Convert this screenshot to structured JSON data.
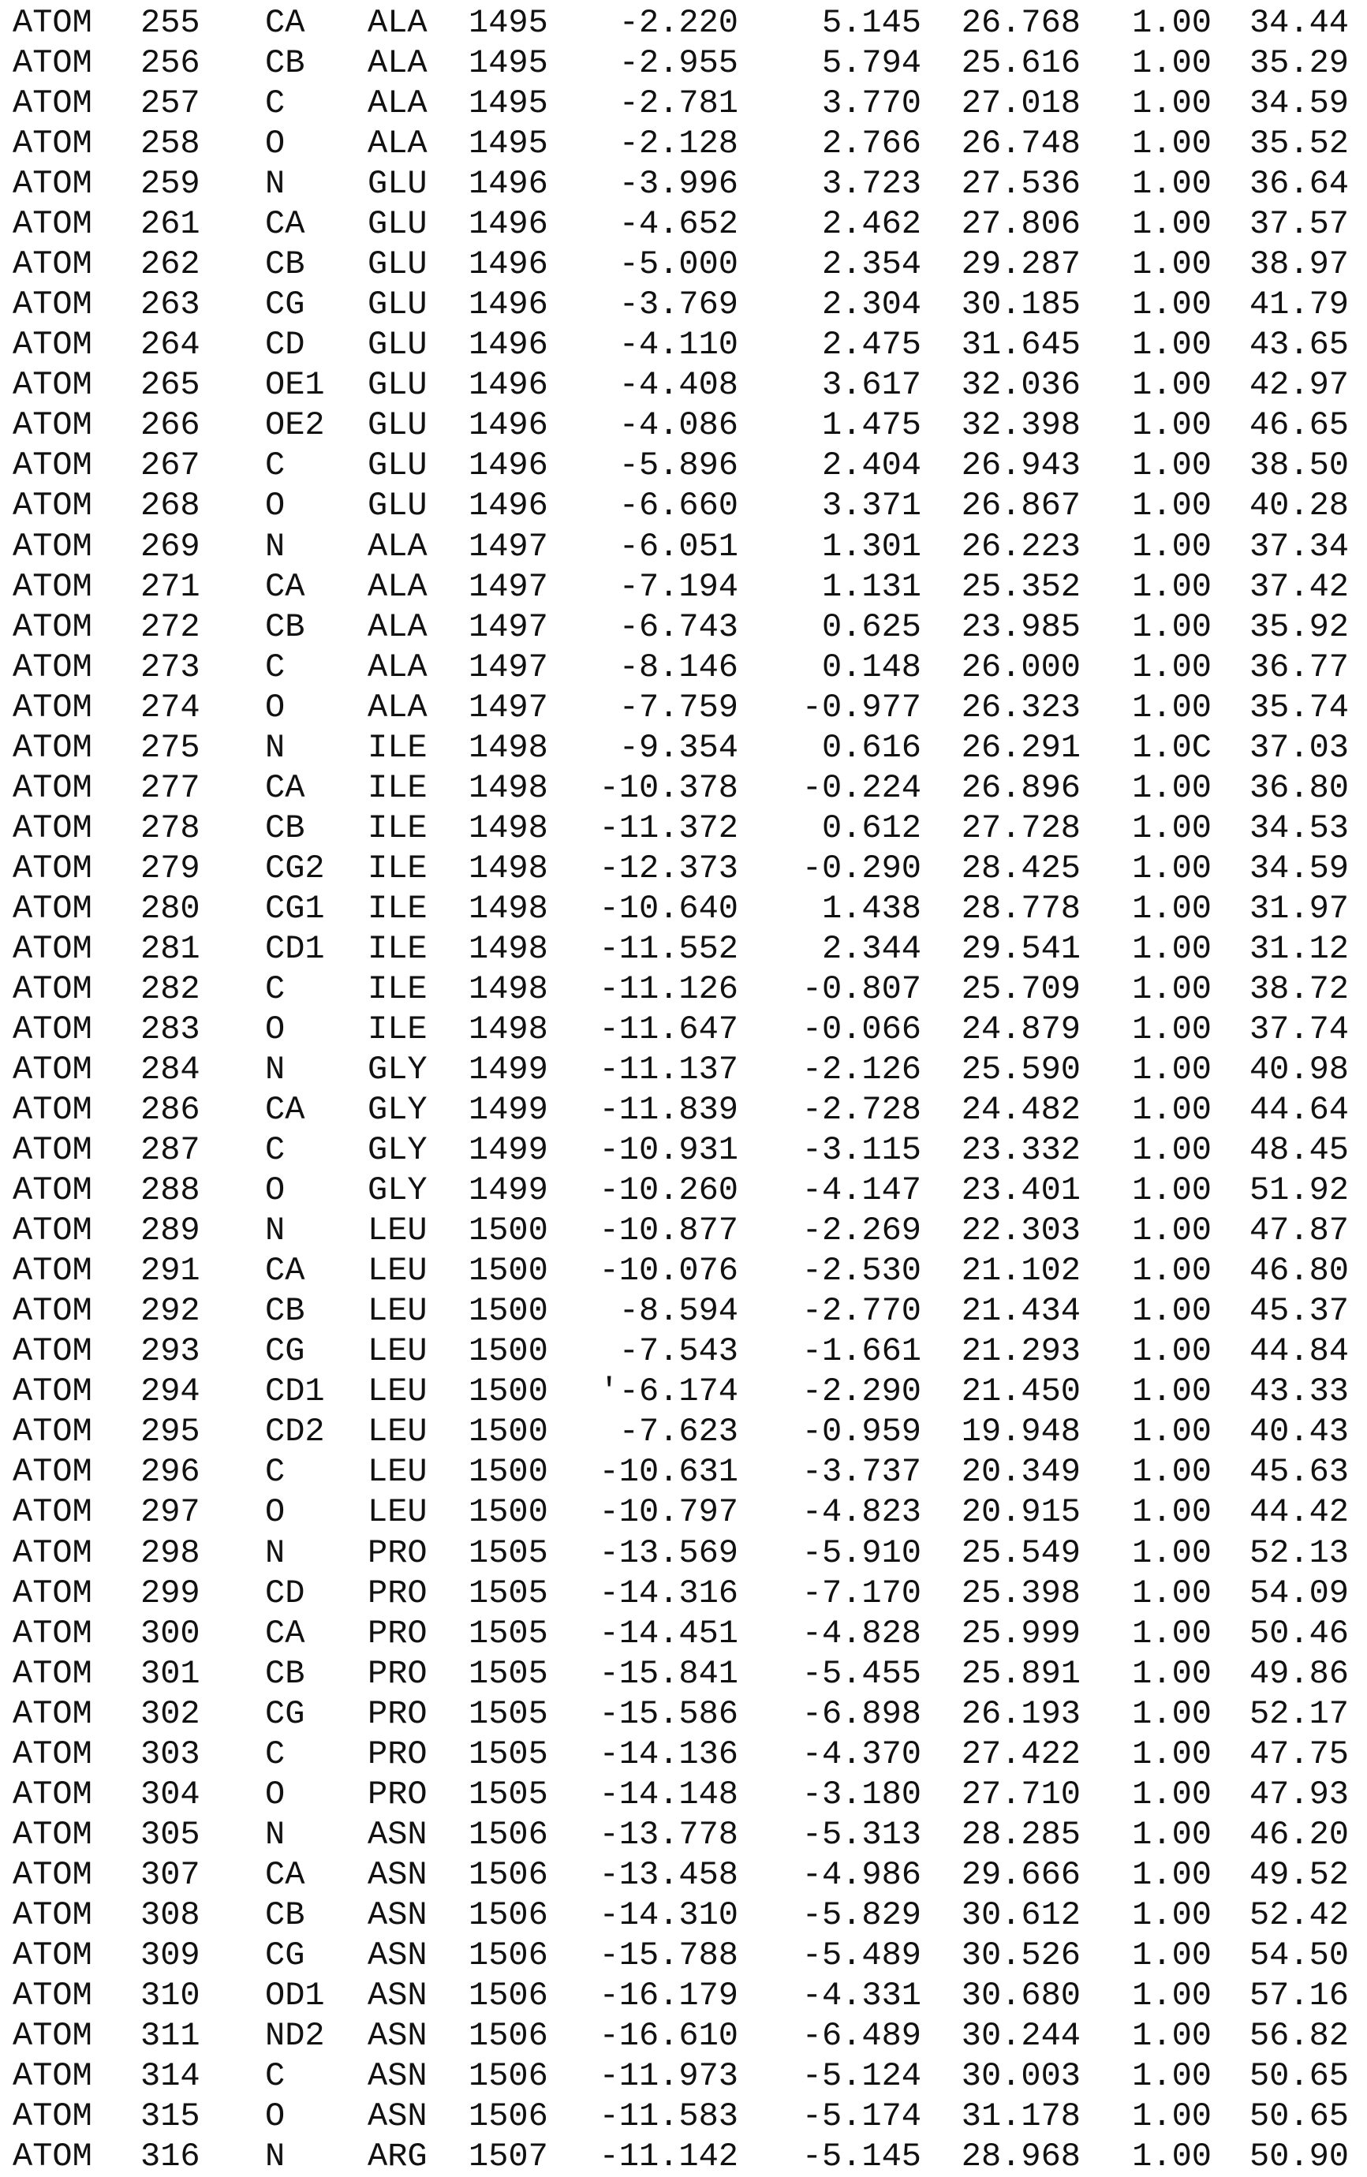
{
  "atoms": [
    [
      "ATOM",
      "255",
      "CA",
      "ALA",
      "1495",
      "-2.220",
      "5.145",
      "26.768",
      "1.00",
      "34.44"
    ],
    [
      "ATOM",
      "256",
      "CB",
      "ALA",
      "1495",
      "-2.955",
      "5.794",
      "25.616",
      "1.00",
      "35.29"
    ],
    [
      "ATOM",
      "257",
      "C",
      "ALA",
      "1495",
      "-2.781",
      "3.770",
      "27.018",
      "1.00",
      "34.59"
    ],
    [
      "ATOM",
      "258",
      "O",
      "ALA",
      "1495",
      "-2.128",
      "2.766",
      "26.748",
      "1.00",
      "35.52"
    ],
    [
      "ATOM",
      "259",
      "N",
      "GLU",
      "1496",
      "-3.996",
      "3.723",
      "27.536",
      "1.00",
      "36.64"
    ],
    [
      "ATOM",
      "261",
      "CA",
      "GLU",
      "1496",
      "-4.652",
      "2.462",
      "27.806",
      "1.00",
      "37.57"
    ],
    [
      "ATOM",
      "262",
      "CB",
      "GLU",
      "1496",
      "-5.000",
      "2.354",
      "29.287",
      "1.00",
      "38.97"
    ],
    [
      "ATOM",
      "263",
      "CG",
      "GLU",
      "1496",
      "-3.769",
      "2.304",
      "30.185",
      "1.00",
      "41.79"
    ],
    [
      "ATOM",
      "264",
      "CD",
      "GLU",
      "1496",
      "-4.110",
      "2.475",
      "31.645",
      "1.00",
      "43.65"
    ],
    [
      "ATOM",
      "265",
      "OE1",
      "GLU",
      "1496",
      "-4.408",
      "3.617",
      "32.036",
      "1.00",
      "42.97"
    ],
    [
      "ATOM",
      "266",
      "OE2",
      "GLU",
      "1496",
      "-4.086",
      "1.475",
      "32.398",
      "1.00",
      "46.65"
    ],
    [
      "ATOM",
      "267",
      "C",
      "GLU",
      "1496",
      "-5.896",
      "2.404",
      "26.943",
      "1.00",
      "38.50"
    ],
    [
      "ATOM",
      "268",
      "O",
      "GLU",
      "1496",
      "-6.660",
      "3.371",
      "26.867",
      "1.00",
      "40.28"
    ],
    [
      "ATOM",
      "269",
      "N",
      "ALA",
      "1497",
      "-6.051",
      "1.301",
      "26.223",
      "1.00",
      "37.34"
    ],
    [
      "ATOM",
      "271",
      "CA",
      "ALA",
      "1497",
      "-7.194",
      "1.131",
      "25.352",
      "1.00",
      "37.42"
    ],
    [
      "ATOM",
      "272",
      "CB",
      "ALA",
      "1497",
      "-6.743",
      "0.625",
      "23.985",
      "1.00",
      "35.92"
    ],
    [
      "ATOM",
      "273",
      "C",
      "ALA",
      "1497",
      "-8.146",
      "0.148",
      "26.000",
      "1.00",
      "36.77"
    ],
    [
      "ATOM",
      "274",
      "O",
      "ALA",
      "1497",
      "-7.759",
      "-0.977",
      "26.323",
      "1.00",
      "35.74"
    ],
    [
      "ATOM",
      "275",
      "N",
      "ILE",
      "1498",
      "-9.354",
      "0.616",
      "26.291",
      "1.0C",
      "37.03"
    ],
    [
      "ATOM",
      "277",
      "CA",
      "ILE",
      "1498",
      "-10.378",
      "-0.224",
      "26.896",
      "1.00",
      "36.80"
    ],
    [
      "ATOM",
      "278",
      "CB",
      "ILE",
      "1498",
      "-11.372",
      "0.612",
      "27.728",
      "1.00",
      "34.53"
    ],
    [
      "ATOM",
      "279",
      "CG2",
      "ILE",
      "1498",
      "-12.373",
      "-0.290",
      "28.425",
      "1.00",
      "34.59"
    ],
    [
      "ATOM",
      "280",
      "CG1",
      "ILE",
      "1498",
      "-10.640",
      "1.438",
      "28.778",
      "1.00",
      "31.97"
    ],
    [
      "ATOM",
      "281",
      "CD1",
      "ILE",
      "1498",
      "-11.552",
      "2.344",
      "29.541",
      "1.00",
      "31.12"
    ],
    [
      "ATOM",
      "282",
      "C",
      "ILE",
      "1498",
      "-11.126",
      "-0.807",
      "25.709",
      "1.00",
      "38.72"
    ],
    [
      "ATOM",
      "283",
      "O",
      "ILE",
      "1498",
      "-11.647",
      "-0.066",
      "24.879",
      "1.00",
      "37.74"
    ],
    [
      "ATOM",
      "284",
      "N",
      "GLY",
      "1499",
      "-11.137",
      "-2.126",
      "25.590",
      "1.00",
      "40.98"
    ],
    [
      "ATOM",
      "286",
      "CA",
      "GLY",
      "1499",
      "-11.839",
      "-2.728",
      "24.482",
      "1.00",
      "44.64"
    ],
    [
      "ATOM",
      "287",
      "C",
      "GLY",
      "1499",
      "-10.931",
      "-3.115",
      "23.332",
      "1.00",
      "48.45"
    ],
    [
      "ATOM",
      "288",
      "O",
      "GLY",
      "1499",
      "-10.260",
      "-4.147",
      "23.401",
      "1.00",
      "51.92"
    ],
    [
      "ATOM",
      "289",
      "N",
      "LEU",
      "1500",
      "-10.877",
      "-2.269",
      "22.303",
      "1.00",
      "47.87"
    ],
    [
      "ATOM",
      "291",
      "CA",
      "LEU",
      "1500",
      "-10.076",
      "-2.530",
      "21.102",
      "1.00",
      "46.80"
    ],
    [
      "ATOM",
      "292",
      "CB",
      "LEU",
      "1500",
      "-8.594",
      "-2.770",
      "21.434",
      "1.00",
      "45.37"
    ],
    [
      "ATOM",
      "293",
      "CG",
      "LEU",
      "1500",
      "-7.543",
      "-1.661",
      "21.293",
      "1.00",
      "44.84"
    ],
    [
      "ATOM",
      "294",
      "CD1",
      "LEU",
      "1500",
      "'-6.174",
      "-2.290",
      "21.450",
      "1.00",
      "43.33"
    ],
    [
      "ATOM",
      "295",
      "CD2",
      "LEU",
      "1500",
      "-7.623",
      "-0.959",
      "19.948",
      "1.00",
      "40.43"
    ],
    [
      "ATOM",
      "296",
      "C",
      "LEU",
      "1500",
      "-10.631",
      "-3.737",
      "20.349",
      "1.00",
      "45.63"
    ],
    [
      "ATOM",
      "297",
      "O",
      "LEU",
      "1500",
      "-10.797",
      "-4.823",
      "20.915",
      "1.00",
      "44.42"
    ],
    [
      "ATOM",
      "298",
      "N",
      "PRO",
      "1505",
      "-13.569",
      "-5.910",
      "25.549",
      "1.00",
      "52.13"
    ],
    [
      "ATOM",
      "299",
      "CD",
      "PRO",
      "1505",
      "-14.316",
      "-7.170",
      "25.398",
      "1.00",
      "54.09"
    ],
    [
      "ATOM",
      "300",
      "CA",
      "PRO",
      "1505",
      "-14.451",
      "-4.828",
      "25.999",
      "1.00",
      "50.46"
    ],
    [
      "ATOM",
      "301",
      "CB",
      "PRO",
      "1505",
      "-15.841",
      "-5.455",
      "25.891",
      "1.00",
      "49.86"
    ],
    [
      "ATOM",
      "302",
      "CG",
      "PRO",
      "1505",
      "-15.586",
      "-6.898",
      "26.193",
      "1.00",
      "52.17"
    ],
    [
      "ATOM",
      "303",
      "C",
      "PRO",
      "1505",
      "-14.136",
      "-4.370",
      "27.422",
      "1.00",
      "47.75"
    ],
    [
      "ATOM",
      "304",
      "O",
      "PRO",
      "1505",
      "-14.148",
      "-3.180",
      "27.710",
      "1.00",
      "47.93"
    ],
    [
      "ATOM",
      "305",
      "N",
      "ASN",
      "1506",
      "-13.778",
      "-5.313",
      "28.285",
      "1.00",
      "46.20"
    ],
    [
      "ATOM",
      "307",
      "CA",
      "ASN",
      "1506",
      "-13.458",
      "-4.986",
      "29.666",
      "1.00",
      "49.52"
    ],
    [
      "ATOM",
      "308",
      "CB",
      "ASN",
      "1506",
      "-14.310",
      "-5.829",
      "30.612",
      "1.00",
      "52.42"
    ],
    [
      "ATOM",
      "309",
      "CG",
      "ASN",
      "1506",
      "-15.788",
      "-5.489",
      "30.526",
      "1.00",
      "54.50"
    ],
    [
      "ATOM",
      "310",
      "OD1",
      "ASN",
      "1506",
      "-16.179",
      "-4.331",
      "30.680",
      "1.00",
      "57.16"
    ],
    [
      "ATOM",
      "311",
      "ND2",
      "ASN",
      "1506",
      "-16.610",
      "-6.489",
      "30.244",
      "1.00",
      "56.82"
    ],
    [
      "ATOM",
      "314",
      "C",
      "ASN",
      "1506",
      "-11.973",
      "-5.124",
      "30.003",
      "1.00",
      "50.65"
    ],
    [
      "ATOM",
      "315",
      "O",
      "ASN",
      "1506",
      "-11.583",
      "-5.174",
      "31.178",
      "1.00",
      "50.65"
    ],
    [
      "ATOM",
      "316",
      "N",
      "ARG",
      "1507",
      "-11.142",
      "-5.145",
      "28.968",
      "1.00",
      "50.90"
    ]
  ]
}
